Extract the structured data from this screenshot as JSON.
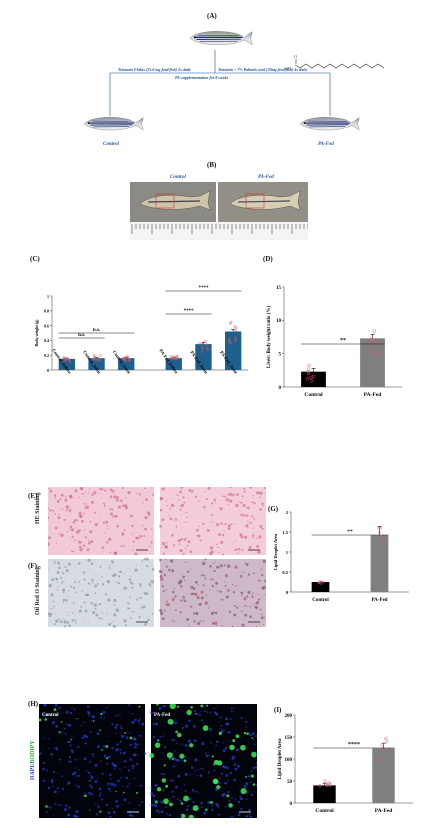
{
  "panelA": {
    "label": "(A)",
    "left_diet": "Tetramin Flakes (31.6 mg feed/fish) 2x daily",
    "right_diet": "Tetramin + 7% Palmitic acid (20mg feed/fish) 4x daily",
    "duration": "PA-supplementation for 8 weeks",
    "control": "Control",
    "pafed": "PA-Fed"
  },
  "panelB": {
    "label": "(B)",
    "control": "Control",
    "pafed": "PA-Fed"
  },
  "panelE": {
    "label": "(E)",
    "stain": "HE Staining"
  },
  "panelF": {
    "label": "(F)",
    "stain": "Oil Red O Staining"
  },
  "panelH": {
    "label": "(H)",
    "control": "Control",
    "pafed": "PA-Fed",
    "stain_a": "DAPI/",
    "stain_b": "BODIPY"
  },
  "chart_data": [
    {
      "id": "C",
      "label": "(C)",
      "type": "bar",
      "categories": [
        "Control_before",
        "Control_1mnt",
        "Control_2mnt",
        "PA-Fed_before",
        "PA-Fed_1mnt",
        "PA-Fed_2mnt"
      ],
      "values": [
        0.15,
        0.16,
        0.16,
        0.16,
        0.35,
        0.52
      ],
      "errors": [
        0.01,
        0.01,
        0.01,
        0.01,
        0.02,
        0.03
      ],
      "ylabel": "Body weight (g)",
      "ylim": [
        0,
        1
      ],
      "yticks": [
        0,
        0.2,
        0.4,
        0.6,
        0.8,
        1
      ],
      "tick_labels": [
        "0",
        "0.2",
        "0.4",
        "0.6",
        "0.8",
        "1"
      ],
      "significance": [
        {
          "from": 0,
          "to": 1,
          "text": "n.s."
        },
        {
          "from": 0,
          "to": 2,
          "text": "n.s."
        },
        {
          "from": 3,
          "to": 4,
          "text": "****"
        },
        {
          "from": 3,
          "to": 5,
          "text": "****"
        }
      ],
      "color": "#1f5f8b"
    },
    {
      "id": "D",
      "label": "(D)",
      "type": "bar",
      "categories": [
        "Control",
        "PA-Fed"
      ],
      "values": [
        2.3,
        7.3
      ],
      "errors": [
        0.5,
        0.6
      ],
      "colors": [
        "#000000",
        "#7f7f7f"
      ],
      "ylabel": "Liver: Body weight ratio (%)",
      "ylim": [
        0,
        15
      ],
      "yticks": [
        0,
        5,
        10,
        15
      ],
      "tick_labels": [
        "0",
        "5",
        "10",
        "15"
      ],
      "significance": [
        {
          "from": 0,
          "to": 1,
          "text": "**"
        }
      ]
    },
    {
      "id": "G",
      "label": "(G)",
      "type": "bar",
      "categories": [
        "Control",
        "PA-Fed"
      ],
      "values": [
        0.25,
        1.42
      ],
      "errors": [
        0.02,
        0.22
      ],
      "colors": [
        "#000000",
        "#7f7f7f"
      ],
      "ylabel": "Lipid Droplet Area",
      "ylim": [
        0,
        2
      ],
      "yticks": [
        0,
        0.5,
        1,
        1.5,
        2
      ],
      "tick_labels": [
        "0",
        "0.5",
        "1",
        "1.5",
        "2"
      ],
      "significance": [
        {
          "from": 0,
          "to": 1,
          "text": "**"
        }
      ]
    },
    {
      "id": "I",
      "label": "(I)",
      "type": "bar",
      "categories": [
        "Control",
        "PA-Fed"
      ],
      "values": [
        40,
        124
      ],
      "errors": [
        5,
        12
      ],
      "colors": [
        "#000000",
        "#7f7f7f"
      ],
      "ylabel": "Lipid Droplet Area",
      "ylim": [
        0,
        200
      ],
      "yticks": [
        0,
        50,
        100,
        150,
        200
      ],
      "tick_labels": [
        "0",
        "50",
        "100",
        "150",
        "200"
      ],
      "significance": [
        {
          "from": 0,
          "to": 1,
          "text": "****"
        }
      ]
    }
  ]
}
